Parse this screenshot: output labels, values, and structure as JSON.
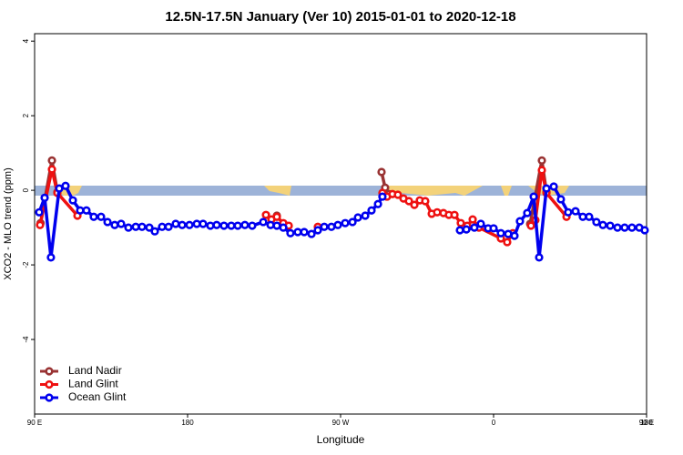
{
  "chart_data": {
    "type": "line",
    "title": "12.5N-17.5N January (Ver 10)   2015-01-01 to 2020-12-18",
    "x_label": "Longitude",
    "y_label": "XCO2 - MLO trend (ppm)",
    "xlim": [
      90,
      450
    ],
    "ylim": [
      -6,
      4.2
    ],
    "xticks": [
      {
        "value": 90,
        "label": "90 E"
      },
      180,
      {
        "value": 270,
        "label": "90 W"
      },
      {
        "value": 360,
        "label": "0"
      },
      {
        "value": 450,
        "label": "90 E"
      },
      {
        "value": 540,
        "label": "180"
      }
    ],
    "yticks": [
      -4,
      -2,
      0,
      2,
      4
    ],
    "legend": "bottom-left",
    "series": [
      {
        "name": "Land Nadir",
        "color": "#993333",
        "x": [
          93.5,
          100.2,
          103.4,
          170,
          232.5,
          260,
          294.1,
          296.2,
          298.4,
          340,
          381.5,
          388.4,
          391.1
        ],
        "values": [
          -0.88,
          0.8,
          -0.05,
          null,
          -0.68,
          null,
          0.49,
          0.07,
          -0.1,
          null,
          -0.9,
          0.8,
          -0.05
        ]
      },
      {
        "name": "Land Glint",
        "color": "#ee1111",
        "x": [
          93.2,
          100.2,
          103.4,
          115.2,
          170,
          226.1,
          229.3,
          232.5,
          236.3,
          239.5,
          248,
          256.6,
          275,
          294.6,
          297.3,
          300.5,
          303.7,
          307,
          310.2,
          313.4,
          316.6,
          319.8,
          323.6,
          326.8,
          330.5,
          333.7,
          337,
          340.7,
          344.5,
          347.7,
          351.4,
          364.3,
          368,
          371.3,
          376.5,
          382,
          384.6,
          388.4,
          391.1,
          402.9
        ],
        "values": [
          -0.93,
          0.56,
          -0.07,
          -0.68,
          null,
          -0.66,
          -0.78,
          -0.71,
          -0.88,
          -0.95,
          null,
          -0.98,
          null,
          -0.07,
          -0.17,
          -0.1,
          -0.12,
          -0.22,
          -0.29,
          -0.39,
          -0.27,
          -0.29,
          -0.63,
          -0.59,
          -0.61,
          -0.66,
          -0.66,
          -0.88,
          -0.95,
          -0.78,
          -1.0,
          -1.29,
          -1.39,
          -1.15,
          null,
          -0.95,
          -0.8,
          0.54,
          -0.07,
          -0.71
        ]
      },
      {
        "name": "Ocean Glint",
        "color": "#0000ee",
        "x": [
          92.7,
          95.9,
          99.6,
          104.5,
          108.2,
          112.5,
          116.8,
          120.5,
          124.8,
          129.1,
          132.9,
          137.1,
          140.9,
          145.2,
          149.5,
          153.2,
          157.5,
          160.7,
          165,
          168.8,
          173,
          176.8,
          181.1,
          185.4,
          189.1,
          193.4,
          197.1,
          201.4,
          205.7,
          209.5,
          213.7,
          218,
          224.5,
          228.8,
          232.5,
          236.3,
          240.5,
          244.8,
          248.6,
          252.9,
          256.6,
          260.4,
          264.6,
          268.4,
          272.7,
          277,
          280.2,
          284.5,
          288.2,
          292,
          294.6,
          317.5,
          340.2,
          344,
          348.7,
          352.5,
          356.8,
          360,
          364.3,
          368.6,
          372.3,
          375.5,
          379.8,
          383.6,
          386.8,
          391.1,
          395.4,
          399.6,
          403.9,
          408.2,
          412.5,
          416.2,
          420.5,
          424.3,
          428.6,
          432.9,
          437.1,
          441.4,
          445.7,
          448.9
        ],
        "values": [
          -0.59,
          -0.2,
          -1.8,
          0.05,
          0.12,
          -0.27,
          -0.54,
          -0.54,
          -0.71,
          -0.71,
          -0.85,
          -0.93,
          -0.9,
          -1.0,
          -0.98,
          -0.98,
          -1.0,
          -1.1,
          -0.98,
          -0.98,
          -0.9,
          -0.93,
          -0.93,
          -0.9,
          -0.9,
          -0.95,
          -0.93,
          -0.95,
          -0.95,
          -0.95,
          -0.93,
          -0.95,
          -0.85,
          -0.93,
          -0.95,
          -1.0,
          -1.15,
          -1.12,
          -1.12,
          -1.17,
          -1.07,
          -0.98,
          -0.98,
          -0.93,
          -0.88,
          -0.85,
          -0.73,
          -0.68,
          -0.54,
          -0.37,
          -0.17,
          null,
          -1.07,
          -1.05,
          -1.0,
          -0.9,
          -1.02,
          -1.02,
          -1.15,
          -1.17,
          -1.22,
          -0.83,
          -0.61,
          -0.17,
          -1.8,
          0.05,
          0.1,
          -0.24,
          -0.59,
          -0.56,
          -0.71,
          -0.71,
          -0.85,
          -0.93,
          -0.95,
          -1.0,
          -1.0,
          -1.0,
          -1.0,
          -1.07
        ]
      }
    ]
  }
}
